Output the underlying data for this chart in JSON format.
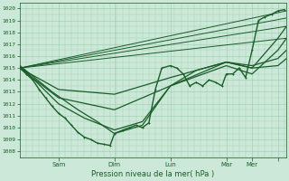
{
  "title": "Pression niveau de la mer( hPa )",
  "ylabel_values": [
    1008,
    1009,
    1010,
    1011,
    1012,
    1013,
    1014,
    1015,
    1016,
    1017,
    1018,
    1019,
    1020
  ],
  "ylim": [
    1007.5,
    1020.5
  ],
  "xlim": [
    0,
    124
  ],
  "bg_color": "#cce8d8",
  "grid_color": "#99ccaa",
  "line_color": "#1a5c2a",
  "xtick_positions": [
    18,
    44,
    70,
    96,
    108,
    120
  ],
  "xtick_labels": [
    "Sam",
    "Dim",
    "Lun",
    "Mar",
    "Mer",
    ""
  ],
  "series": [
    {
      "x": [
        0,
        3,
        6,
        9,
        12,
        15,
        18,
        21,
        24,
        27,
        30,
        33,
        36,
        39,
        42,
        44,
        48,
        51,
        54,
        57,
        60,
        63,
        66,
        70,
        73,
        76,
        79,
        82,
        85,
        88,
        91,
        94,
        96,
        99,
        102,
        105,
        108,
        111,
        114,
        117,
        120,
        123
      ],
      "y": [
        1015.0,
        1014.5,
        1014.0,
        1013.2,
        1012.5,
        1011.8,
        1011.2,
        1010.8,
        1010.2,
        1009.6,
        1009.2,
        1009.0,
        1008.7,
        1008.6,
        1008.5,
        1009.5,
        1009.8,
        1010.0,
        1010.2,
        1010.0,
        1010.4,
        1013.2,
        1015.0,
        1015.2,
        1015.0,
        1014.5,
        1013.5,
        1013.8,
        1013.5,
        1014.0,
        1013.8,
        1013.5,
        1014.5,
        1014.5,
        1015.0,
        1014.2,
        1016.5,
        1019.0,
        1019.3,
        1019.5,
        1019.8,
        1019.9
      ],
      "lw": 1.0,
      "marker": "+"
    },
    {
      "x": [
        0,
        124
      ],
      "y": [
        1015.0,
        1019.8
      ],
      "lw": 0.7,
      "marker": null
    },
    {
      "x": [
        0,
        124
      ],
      "y": [
        1015.0,
        1019.2
      ],
      "lw": 0.7,
      "marker": null
    },
    {
      "x": [
        0,
        124
      ],
      "y": [
        1015.0,
        1018.5
      ],
      "lw": 0.7,
      "marker": null
    },
    {
      "x": [
        0,
        124
      ],
      "y": [
        1015.0,
        1017.5
      ],
      "lw": 0.7,
      "marker": null
    },
    {
      "x": [
        0,
        18,
        44,
        70,
        96,
        108,
        120,
        124
      ],
      "y": [
        1015.0,
        1013.2,
        1012.8,
        1014.2,
        1015.5,
        1015.0,
        1017.5,
        1018.5
      ],
      "lw": 0.9,
      "marker": null
    },
    {
      "x": [
        0,
        18,
        44,
        70,
        96,
        108,
        120,
        124
      ],
      "y": [
        1015.0,
        1012.5,
        1011.5,
        1013.5,
        1015.2,
        1014.5,
        1016.5,
        1017.5
      ],
      "lw": 0.9,
      "marker": null
    },
    {
      "x": [
        0,
        18,
        30,
        44,
        57,
        70,
        96,
        108,
        120,
        124
      ],
      "y": [
        1015.2,
        1012.0,
        1010.8,
        1009.8,
        1010.5,
        1013.5,
        1015.5,
        1015.2,
        1015.8,
        1016.5
      ],
      "lw": 0.9,
      "marker": null
    },
    {
      "x": [
        0,
        15,
        27,
        36,
        44,
        57,
        66,
        70,
        82,
        96,
        108,
        120,
        124
      ],
      "y": [
        1015.2,
        1013.0,
        1011.5,
        1010.5,
        1009.5,
        1010.2,
        1012.5,
        1013.5,
        1014.8,
        1015.5,
        1015.0,
        1015.2,
        1015.8
      ],
      "lw": 0.9,
      "marker": null
    }
  ]
}
